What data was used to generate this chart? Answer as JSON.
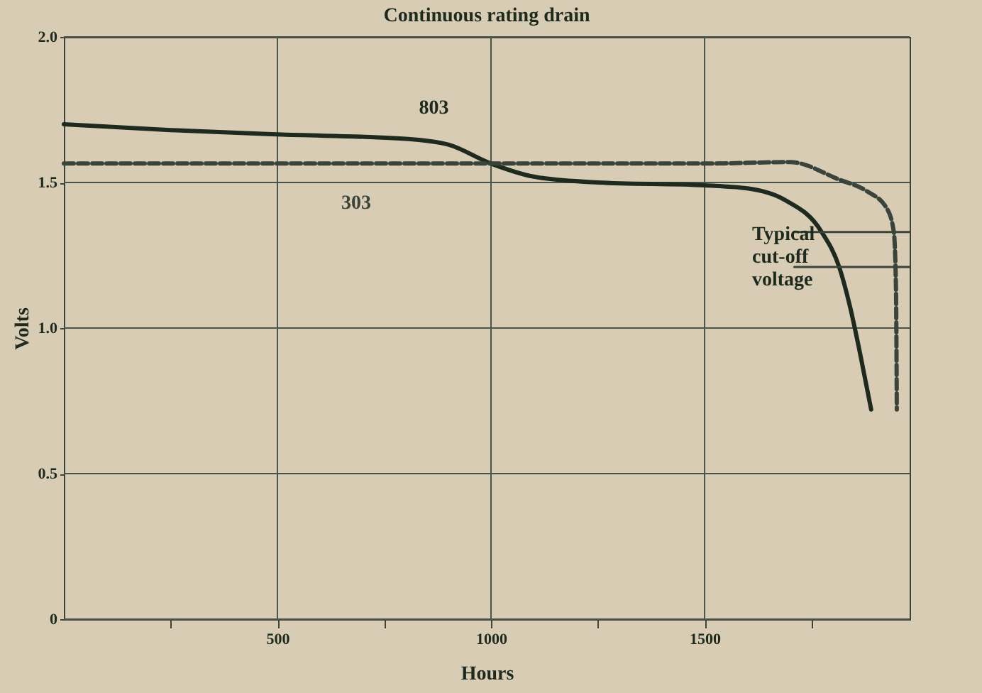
{
  "chart_data": {
    "type": "line",
    "title": "Continuous rating drain",
    "xlabel": "Hours",
    "ylabel": "Volts",
    "xlim": [
      0,
      1980
    ],
    "ylim": [
      0,
      2.0
    ],
    "xticks": [
      {
        "value": 250,
        "label": null
      },
      500,
      {
        "value": 750,
        "label": null
      },
      1000,
      {
        "value": 1250,
        "label": null
      },
      1500,
      {
        "value": 1750,
        "label": null
      }
    ],
    "yticks": [
      {
        "value": 0,
        "label": "0"
      },
      0.5,
      {
        "value": 1,
        "label": "1.0"
      },
      1.5,
      {
        "value": 2,
        "label": "2.0"
      }
    ],
    "grid": true,
    "series": [
      {
        "name": "803",
        "color": "#1e2a1e",
        "line_style": "solid",
        "x": [
          0,
          250,
          500,
          800,
          900,
          1000,
          1100,
          1250,
          1500,
          1600,
          1688,
          1774,
          1815,
          1841,
          1863,
          1890
        ],
        "values": [
          1.7,
          1.68,
          1.665,
          1.65,
          1.63,
          1.565,
          1.52,
          1.5,
          1.49,
          1.48,
          1.44,
          1.33,
          1.21,
          1.07,
          0.92,
          0.72
        ]
      },
      {
        "name": "303",
        "color": "#3a443a",
        "line_style": "dashed",
        "x": [
          0,
          500,
          1000,
          1500,
          1700,
          1815,
          1880,
          1927,
          1943,
          1948,
          1950
        ],
        "values": [
          1.565,
          1.565,
          1.565,
          1.565,
          1.57,
          1.51,
          1.47,
          1.41,
          1.33,
          1.14,
          0.72
        ]
      },
      {
        "color": "#3a443a",
        "line_style": "solid",
        "x": [
          1710,
          1980
        ],
        "values": [
          1.33,
          1.33
        ]
      },
      {
        "color": "#3a443a",
        "line_style": "solid",
        "x": [
          1710,
          1980
        ],
        "values": [
          1.21,
          1.21
        ]
      }
    ],
    "annotations": [
      "Typical cut-off voltage"
    ]
  }
}
